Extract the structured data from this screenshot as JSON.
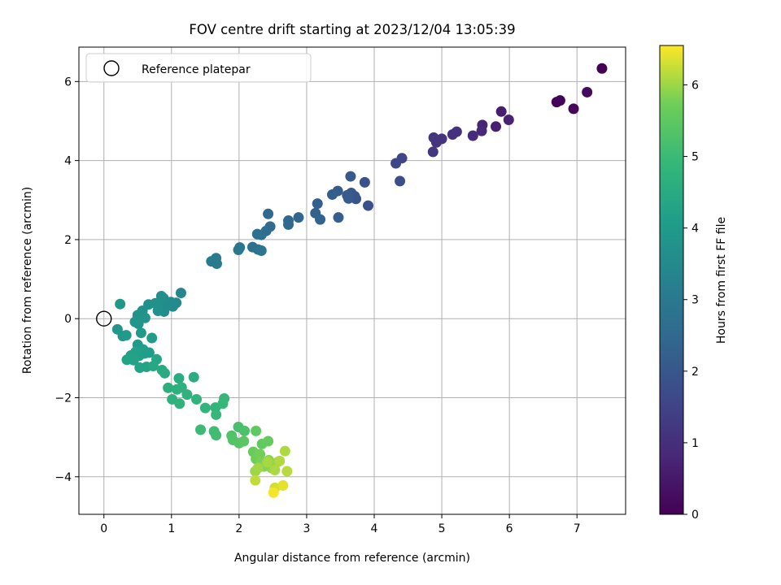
{
  "chart_data": {
    "type": "scatter",
    "title": "FOV centre drift starting at 2023/12/04 13:05:39",
    "xlabel": "Angular distance from reference (arcmin)",
    "ylabel": "Rotation from reference (arcmin)",
    "xlim": [
      -0.37,
      7.72
    ],
    "ylim": [
      -4.95,
      6.87
    ],
    "xticks": [
      0,
      1,
      2,
      3,
      4,
      5,
      6,
      7
    ],
    "yticks": [
      -4,
      -2,
      0,
      2,
      4,
      6
    ],
    "grid": true,
    "colormap": "viridis",
    "colorbar": {
      "label": "Hours from first FF file",
      "range": [
        0,
        6.55
      ],
      "ticks": [
        0,
        1,
        2,
        3,
        4,
        5,
        6
      ]
    },
    "legend": {
      "position": "top-left",
      "entries": [
        {
          "name": "Reference platepar",
          "marker": "open-circle",
          "x": 0,
          "y": 0
        }
      ]
    },
    "points": [
      [
        6.7,
        5.48,
        0.05
      ],
      [
        6.75,
        5.52,
        0.08
      ],
      [
        6.95,
        5.31,
        0.12
      ],
      [
        7.15,
        5.73,
        0.18
      ],
      [
        7.37,
        6.33,
        0.02
      ],
      [
        5.8,
        4.86,
        0.65
      ],
      [
        5.88,
        5.24,
        0.6
      ],
      [
        5.99,
        5.03,
        0.72
      ],
      [
        5.6,
        4.9,
        0.78
      ],
      [
        5.59,
        4.75,
        0.85
      ],
      [
        5.46,
        4.63,
        0.9
      ],
      [
        5.22,
        4.73,
        1.0
      ],
      [
        5.16,
        4.66,
        1.05
      ],
      [
        5.0,
        4.55,
        1.1
      ],
      [
        4.92,
        4.46,
        1.12
      ],
      [
        4.88,
        4.58,
        1.15
      ],
      [
        4.87,
        4.22,
        1.2
      ],
      [
        4.41,
        4.06,
        1.55
      ],
      [
        4.32,
        3.93,
        1.6
      ],
      [
        4.38,
        3.48,
        1.75
      ],
      [
        3.91,
        2.86,
        1.8
      ],
      [
        3.86,
        3.45,
        1.85
      ],
      [
        3.73,
        3.03,
        1.9
      ],
      [
        3.71,
        3.1,
        1.95
      ],
      [
        3.66,
        3.18,
        2.0
      ],
      [
        3.65,
        3.6,
        2.05
      ],
      [
        3.62,
        3.04,
        2.1
      ],
      [
        3.6,
        3.12,
        2.12
      ],
      [
        3.46,
        3.23,
        2.15
      ],
      [
        3.38,
        3.14,
        2.18
      ],
      [
        3.47,
        2.56,
        2.22
      ],
      [
        3.16,
        2.91,
        2.25
      ],
      [
        3.13,
        2.67,
        2.3
      ],
      [
        3.2,
        2.51,
        2.35
      ],
      [
        2.88,
        2.56,
        2.4
      ],
      [
        2.73,
        2.38,
        2.45
      ],
      [
        2.73,
        2.48,
        2.48
      ],
      [
        2.43,
        2.65,
        2.5
      ],
      [
        2.46,
        2.33,
        2.55
      ],
      [
        2.4,
        2.22,
        2.6
      ],
      [
        2.33,
        2.12,
        2.65
      ],
      [
        2.27,
        2.14,
        2.7
      ],
      [
        2.2,
        1.81,
        2.75
      ],
      [
        2.28,
        1.75,
        2.8
      ],
      [
        2.33,
        1.72,
        2.85
      ],
      [
        2.01,
        1.8,
        2.9
      ],
      [
        1.99,
        1.74,
        2.95
      ],
      [
        1.66,
        1.53,
        3.0
      ],
      [
        1.59,
        1.45,
        3.05
      ],
      [
        1.67,
        1.39,
        3.1
      ],
      [
        1.14,
        0.65,
        3.4
      ],
      [
        1.07,
        0.4,
        3.45
      ],
      [
        1.02,
        0.31,
        3.5
      ],
      [
        0.99,
        0.42,
        3.52
      ],
      [
        0.94,
        0.33,
        3.55
      ],
      [
        0.89,
        0.18,
        3.58
      ],
      [
        0.88,
        0.52,
        3.6
      ],
      [
        0.85,
        0.57,
        3.62
      ],
      [
        0.81,
        0.34,
        3.65
      ],
      [
        0.8,
        0.2,
        3.68
      ],
      [
        0.76,
        0.39,
        3.7
      ],
      [
        0.66,
        0.36,
        3.72
      ],
      [
        0.57,
        0.2,
        3.75
      ],
      [
        0.5,
        0.09,
        3.78
      ],
      [
        0.61,
        0.02,
        3.8
      ],
      [
        0.51,
        -0.13,
        3.82
      ],
      [
        0.46,
        -0.08,
        3.85
      ],
      [
        0.24,
        0.37,
        3.88
      ],
      [
        0.2,
        -0.27,
        3.9
      ],
      [
        0.28,
        -0.44,
        3.95
      ],
      [
        0.33,
        -0.42,
        3.98
      ],
      [
        0.55,
        -0.36,
        4.0
      ],
      [
        0.5,
        -0.66,
        4.02
      ],
      [
        0.71,
        -0.49,
        4.05
      ],
      [
        0.58,
        -0.78,
        4.08
      ],
      [
        0.67,
        -0.86,
        4.1
      ],
      [
        0.6,
        -0.88,
        4.12
      ],
      [
        0.52,
        -0.94,
        4.15
      ],
      [
        0.47,
        -0.84,
        4.18
      ],
      [
        0.4,
        -0.93,
        4.2
      ],
      [
        0.44,
        -1.05,
        4.22
      ],
      [
        0.34,
        -1.04,
        4.25
      ],
      [
        0.53,
        -1.24,
        4.28
      ],
      [
        0.63,
        -1.22,
        4.3
      ],
      [
        0.78,
        -1.03,
        4.35
      ],
      [
        0.73,
        -1.2,
        4.4
      ],
      [
        0.86,
        -1.3,
        4.45
      ],
      [
        0.9,
        -1.38,
        4.5
      ],
      [
        1.11,
        -1.51,
        4.55
      ],
      [
        1.33,
        -1.48,
        4.6
      ],
      [
        0.95,
        -1.75,
        4.62
      ],
      [
        1.08,
        -1.79,
        4.65
      ],
      [
        1.15,
        -1.74,
        4.68
      ],
      [
        1.01,
        -2.04,
        4.7
      ],
      [
        1.23,
        -1.92,
        4.72
      ],
      [
        1.12,
        -2.15,
        4.75
      ],
      [
        1.37,
        -2.04,
        4.78
      ],
      [
        1.5,
        -2.26,
        4.82
      ],
      [
        1.65,
        -2.25,
        4.85
      ],
      [
        1.78,
        -2.02,
        4.88
      ],
      [
        1.76,
        -2.15,
        4.9
      ],
      [
        1.66,
        -2.43,
        4.92
      ],
      [
        1.43,
        -2.81,
        5.0
      ],
      [
        1.63,
        -2.85,
        5.05
      ],
      [
        1.66,
        -2.95,
        5.08
      ],
      [
        1.99,
        -2.74,
        5.2
      ],
      [
        2.08,
        -2.84,
        5.25
      ],
      [
        1.89,
        -2.96,
        5.3
      ],
      [
        1.91,
        -3.07,
        5.35
      ],
      [
        2.0,
        -3.15,
        5.4
      ],
      [
        2.07,
        -3.1,
        5.45
      ],
      [
        2.25,
        -2.84,
        5.5
      ],
      [
        2.34,
        -3.17,
        5.55
      ],
      [
        2.43,
        -3.1,
        5.6
      ],
      [
        2.21,
        -3.37,
        5.65
      ],
      [
        2.25,
        -3.55,
        5.7
      ],
      [
        2.31,
        -3.43,
        5.75
      ],
      [
        2.33,
        -3.63,
        5.8
      ],
      [
        2.37,
        -3.74,
        5.85
      ],
      [
        2.44,
        -3.58,
        5.9
      ],
      [
        2.48,
        -3.78,
        5.92
      ],
      [
        2.58,
        -3.62,
        5.95
      ],
      [
        2.24,
        -3.86,
        6.0
      ],
      [
        2.28,
        -3.78,
        6.02
      ],
      [
        2.42,
        -3.63,
        6.05
      ],
      [
        2.53,
        -3.83,
        6.08
      ],
      [
        2.68,
        -3.35,
        6.1
      ],
      [
        2.6,
        -3.6,
        6.12
      ],
      [
        2.71,
        -3.86,
        6.15
      ],
      [
        2.24,
        -4.09,
        6.2
      ],
      [
        2.53,
        -4.28,
        6.3
      ],
      [
        2.65,
        -4.22,
        6.4
      ],
      [
        2.51,
        -4.4,
        6.5
      ]
    ]
  }
}
